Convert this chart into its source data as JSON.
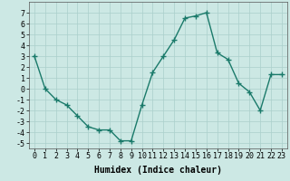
{
  "x": [
    0,
    1,
    2,
    3,
    4,
    5,
    6,
    7,
    8,
    9,
    10,
    11,
    12,
    13,
    14,
    15,
    16,
    17,
    18,
    19,
    20,
    21,
    22,
    23
  ],
  "y": [
    3.0,
    0.0,
    -1.0,
    -1.5,
    -2.5,
    -3.5,
    -3.8,
    -3.8,
    -4.8,
    -4.8,
    -1.5,
    1.5,
    3.0,
    4.5,
    6.5,
    6.7,
    7.0,
    3.3,
    2.7,
    0.5,
    -0.3,
    -2.0,
    1.3,
    1.3
  ],
  "line_color": "#1a7a6a",
  "marker": "+",
  "marker_size": 4,
  "marker_lw": 1.0,
  "line_width": 1.0,
  "bg_color": "#cce8e4",
  "grid_color": "#aacfcb",
  "xlabel": "Humidex (Indice chaleur)",
  "xlabel_fontsize": 7,
  "tick_fontsize": 6,
  "ylim": [
    -5.5,
    8.0
  ],
  "xlim": [
    -0.5,
    23.5
  ],
  "yticks": [
    -5,
    -4,
    -3,
    -2,
    -1,
    0,
    1,
    2,
    3,
    4,
    5,
    6,
    7
  ],
  "xticks": [
    0,
    1,
    2,
    3,
    4,
    5,
    6,
    7,
    8,
    9,
    10,
    11,
    12,
    13,
    14,
    15,
    16,
    17,
    18,
    19,
    20,
    21,
    22,
    23
  ]
}
